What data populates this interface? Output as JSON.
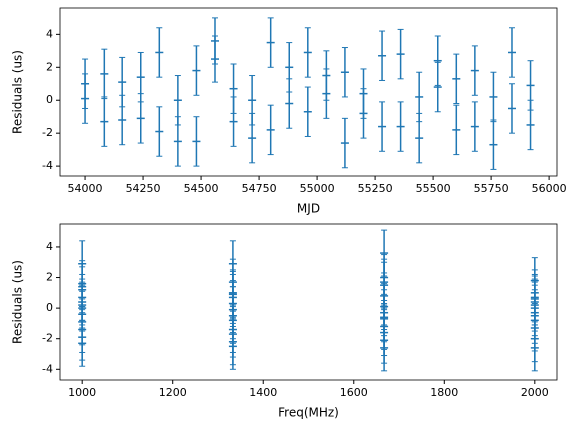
{
  "chart_data": [
    {
      "type": "errorbar",
      "x_label": "MJD",
      "y_label": "Residuals (us)",
      "color": "#1f77b4",
      "x": [
        54000,
        54000,
        54083,
        54083,
        54160,
        54160,
        54240,
        54240,
        54320,
        54320,
        54400,
        54400,
        54480,
        54480,
        54560,
        54560,
        54640,
        54640,
        54720,
        54720,
        54800,
        54800,
        54880,
        54880,
        54960,
        54960,
        55040,
        55040,
        55120,
        55120,
        55200,
        55200,
        55280,
        55280,
        55360,
        55360,
        55440,
        55440,
        55520,
        55520,
        55600,
        55600,
        55680,
        55680,
        55760,
        55760,
        55840,
        55840,
        55920,
        55920
      ],
      "values": [
        1.0,
        0.1,
        1.6,
        -1.3,
        1.1,
        -1.2,
        1.4,
        -1.1,
        2.9,
        -1.9,
        0.0,
        -2.5,
        1.8,
        -2.5,
        3.6,
        2.5,
        0.7,
        -1.3,
        0.0,
        -2.3,
        3.5,
        -1.8,
        2.0,
        -0.2,
        2.9,
        -0.7,
        1.5,
        0.4,
        1.7,
        -2.6,
        0.4,
        -0.8,
        2.7,
        -1.6,
        2.8,
        -1.6,
        0.2,
        -2.3,
        2.4,
        0.8,
        1.3,
        -1.8,
        1.8,
        -1.6,
        0.2,
        -2.7,
        2.9,
        -0.5,
        0.9,
        -1.5
      ],
      "errors": [
        1.5,
        1.5,
        1.5,
        1.5,
        1.5,
        1.5,
        1.5,
        1.5,
        1.5,
        1.5,
        1.5,
        1.5,
        1.5,
        1.5,
        1.4,
        1.4,
        1.5,
        1.5,
        1.5,
        1.5,
        1.5,
        1.5,
        1.5,
        1.5,
        1.5,
        1.5,
        1.5,
        1.5,
        1.5,
        1.5,
        1.5,
        1.5,
        1.5,
        1.5,
        1.5,
        1.5,
        1.5,
        1.5,
        1.5,
        1.5,
        1.5,
        1.5,
        1.5,
        1.5,
        1.5,
        1.5,
        1.5,
        1.5,
        1.5,
        1.5
      ],
      "xlim": [
        53892,
        56034
      ],
      "ylim": [
        -4.6,
        5.6
      ],
      "xticks": [
        54000,
        54250,
        54500,
        54750,
        55000,
        55250,
        55500,
        55750,
        56000
      ],
      "yticks": [
        -4,
        -2,
        0,
        2,
        4
      ]
    },
    {
      "type": "errorbar",
      "x_label": "Freq(MHz)",
      "y_label": "Residuals (us)",
      "color": "#1f77b4",
      "x": [
        1000,
        1000,
        1000,
        1000,
        1000,
        1000,
        1000,
        1000,
        1000,
        1000,
        1000,
        1000,
        1000,
        1333,
        1333,
        1333,
        1333,
        1333,
        1333,
        1333,
        1333,
        1333,
        1333,
        1333,
        1333,
        1333,
        1667,
        1667,
        1667,
        1667,
        1667,
        1667,
        1667,
        1667,
        1667,
        1667,
        1667,
        1667,
        1667,
        2000,
        2000,
        2000,
        2000,
        2000,
        2000,
        2000,
        2000,
        2000,
        2000,
        2000,
        2000,
        2000
      ],
      "values": [
        2.9,
        1.6,
        1.2,
        0.7,
        0.2,
        0.0,
        -0.4,
        -0.9,
        -1.4,
        -1.9,
        -2.3,
        0.4,
        1.4,
        2.9,
        1.7,
        1.0,
        0.7,
        0.3,
        -0.1,
        -0.5,
        -0.8,
        -1.4,
        -2.2,
        -2.5,
        0.9,
        -1.7,
        3.6,
        2.0,
        1.5,
        0.8,
        0.1,
        -0.3,
        -0.7,
        -1.2,
        -1.6,
        -2.1,
        -2.6,
        1.7,
        -0.6,
        1.8,
        1.0,
        0.6,
        0.4,
        0.2,
        0.0,
        -0.3,
        -0.8,
        -1.3,
        -2.0,
        -2.6,
        0.7,
        -0.5
      ],
      "errors": [
        1.5,
        1.5,
        1.5,
        1.5,
        1.5,
        1.5,
        1.5,
        1.5,
        1.5,
        1.5,
        1.5,
        1.5,
        1.5,
        1.5,
        1.5,
        1.5,
        1.5,
        1.5,
        1.5,
        1.5,
        1.5,
        1.5,
        1.5,
        1.5,
        1.5,
        1.5,
        1.5,
        1.5,
        1.5,
        1.5,
        1.5,
        1.5,
        1.5,
        1.5,
        1.5,
        1.5,
        1.5,
        1.5,
        1.5,
        1.5,
        1.5,
        1.5,
        1.5,
        1.5,
        1.5,
        1.5,
        1.5,
        1.5,
        1.5,
        1.5,
        1.5,
        1.5
      ],
      "xlim": [
        951,
        2049
      ],
      "ylim": [
        -4.7,
        5.5
      ],
      "xticks": [
        1000,
        1200,
        1400,
        1600,
        1800,
        2000
      ],
      "yticks": [
        -4,
        -2,
        0,
        2,
        4
      ]
    }
  ]
}
